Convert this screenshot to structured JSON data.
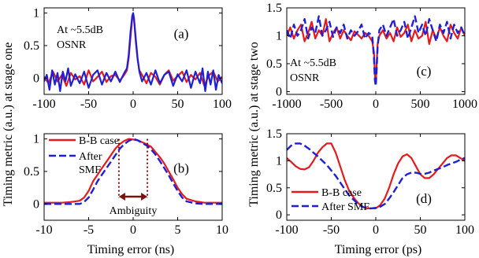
{
  "colors": {
    "red": "#e41a1c",
    "blue": "#1f1fd6",
    "dark_red": "#7b1010",
    "axis": "#000000"
  },
  "labels": {
    "ylabel_left": "Timing metric (a.u.) at stage one",
    "ylabel_right": "Timing metric (a.u.) at stage two",
    "xlabel_left": "Timing error (ns)",
    "xlabel_right": "Timing error (ps)"
  },
  "chart_data": [
    {
      "id": "a",
      "type": "line",
      "panel_label": "(a)",
      "annotation": [
        "At ~5.5dB",
        "OSNR"
      ],
      "xlim": [
        -100,
        100
      ],
      "ylim": [
        -0.25,
        1.08
      ],
      "xticks": [
        -100,
        -50,
        0,
        50,
        100
      ],
      "yticks": [
        0,
        0.5,
        1
      ],
      "series": [
        {
          "color": "red",
          "style": "solid",
          "x": [
            -100,
            -95,
            -90,
            -85,
            -80,
            -75,
            -70,
            -65,
            -60,
            -55,
            -50,
            -45,
            -40,
            -35,
            -30,
            -25,
            -20,
            -15,
            -10,
            -7,
            -5,
            -3,
            -1,
            0,
            1,
            3,
            5,
            7,
            10,
            15,
            20,
            25,
            30,
            35,
            40,
            45,
            50,
            55,
            60,
            65,
            70,
            75,
            80,
            85,
            90,
            95,
            100
          ],
          "y": [
            0.02,
            -0.08,
            0.1,
            -0.05,
            0.05,
            -0.12,
            0.08,
            -0.02,
            0.03,
            -0.1,
            0.12,
            -0.05,
            0.02,
            0.1,
            -0.06,
            0.03,
            0.05,
            -0.04,
            0.05,
            0.12,
            0.3,
            0.62,
            0.92,
            0.98,
            0.9,
            0.55,
            0.28,
            0.12,
            0.05,
            -0.08,
            0.08,
            0.02,
            -0.1,
            0.05,
            0.12,
            -0.04,
            0.03,
            0.1,
            -0.06,
            0.05,
            -0.02,
            0.08,
            -0.12,
            0.04,
            0.1,
            -0.05,
            0.02
          ]
        },
        {
          "color": "blue",
          "style": "solid",
          "x": [
            -100,
            -97,
            -94,
            -91,
            -88,
            -85,
            -82,
            -79,
            -76,
            -73,
            -70,
            -65,
            -60,
            -55,
            -50,
            -45,
            -40,
            -35,
            -30,
            -25,
            -20,
            -15,
            -10,
            -7,
            -5,
            -3,
            -1,
            0,
            1,
            3,
            5,
            7,
            10,
            15,
            20,
            25,
            30,
            35,
            40,
            45,
            50,
            55,
            60,
            65,
            70,
            75,
            78,
            81,
            84,
            87,
            90,
            93,
            96,
            100
          ],
          "y": [
            -0.05,
            0.05,
            -0.18,
            0.12,
            -0.1,
            0.08,
            -0.2,
            0.1,
            -0.05,
            0.15,
            -0.12,
            0.06,
            -0.08,
            0.1,
            -0.15,
            0.05,
            0.12,
            -0.1,
            0.08,
            -0.05,
            0.1,
            -0.06,
            0.08,
            0.15,
            0.35,
            0.7,
            0.96,
            1.0,
            0.92,
            0.6,
            0.3,
            0.1,
            -0.05,
            0.08,
            -0.1,
            0.12,
            -0.08,
            0.05,
            0.1,
            -0.12,
            0.06,
            -0.05,
            0.12,
            -0.15,
            0.1,
            -0.08,
            0.15,
            -0.2,
            0.1,
            -0.1,
            0.12,
            -0.18,
            0.05,
            -0.08
          ]
        }
      ]
    },
    {
      "id": "b",
      "type": "line",
      "panel_label": "(b)",
      "xlim": [
        -10,
        10
      ],
      "ylim": [
        -0.25,
        1.08
      ],
      "xticks": [
        -10,
        -5,
        0,
        5,
        10
      ],
      "yticks": [
        0,
        0.5,
        1
      ],
      "legend": [
        "B-B case",
        "After",
        "SMF"
      ],
      "annotation": "Ambiguity",
      "ambiguity_range": [
        -1.6,
        1.6
      ],
      "series": [
        {
          "color": "red",
          "style": "solid",
          "x": [
            -10,
            -9,
            -8,
            -7,
            -6,
            -5.5,
            -5,
            -4.5,
            -4,
            -3.5,
            -3,
            -2.5,
            -2,
            -1.5,
            -1,
            -0.5,
            0,
            0.5,
            1,
            1.5,
            2,
            2.5,
            3,
            3.5,
            4,
            4.5,
            5,
            5.5,
            6,
            7,
            8,
            9,
            10
          ],
          "y": [
            0.02,
            0.02,
            0.02,
            0.03,
            0.05,
            0.1,
            0.2,
            0.35,
            0.45,
            0.55,
            0.65,
            0.75,
            0.85,
            0.92,
            0.97,
            1.0,
            0.99,
            0.98,
            0.95,
            0.92,
            0.88,
            0.8,
            0.72,
            0.62,
            0.5,
            0.38,
            0.25,
            0.15,
            0.08,
            0.04,
            0.02,
            0.02,
            0.02
          ]
        },
        {
          "color": "blue",
          "style": "dashed",
          "x": [
            -10,
            -9,
            -8,
            -7,
            -6,
            -5.5,
            -5,
            -4.5,
            -4,
            -3.5,
            -3,
            -2.5,
            -2,
            -1.5,
            -1,
            -0.5,
            0,
            0.5,
            1,
            1.5,
            2,
            2.5,
            3,
            3.5,
            4,
            4.5,
            5,
            5.5,
            6,
            7,
            8,
            9,
            10
          ],
          "y": [
            0.0,
            0.0,
            0.0,
            0.0,
            0.0,
            0.03,
            0.1,
            0.22,
            0.35,
            0.45,
            0.55,
            0.65,
            0.75,
            0.85,
            0.92,
            0.97,
            1.0,
            0.98,
            0.94,
            0.9,
            0.84,
            0.76,
            0.66,
            0.55,
            0.44,
            0.32,
            0.2,
            0.1,
            0.04,
            0.01,
            0.0,
            0.0,
            0.0
          ]
        }
      ]
    },
    {
      "id": "c",
      "type": "line",
      "panel_label": "(c)",
      "annotation": [
        "At ~5.5dB",
        "OSNR"
      ],
      "xlim": [
        -1000,
        1000
      ],
      "ylim": [
        -0.05,
        1.5
      ],
      "xticks": [
        -1000,
        -500,
        0,
        500,
        1000
      ],
      "yticks": [
        0,
        0.5,
        1,
        1.5
      ],
      "series": [
        {
          "color": "red",
          "style": "solid",
          "x": [
            -1000,
            -960,
            -920,
            -880,
            -840,
            -800,
            -760,
            -720,
            -680,
            -640,
            -600,
            -560,
            -520,
            -480,
            -440,
            -400,
            -360,
            -320,
            -280,
            -240,
            -200,
            -160,
            -120,
            -80,
            -40,
            -20,
            -10,
            0,
            10,
            20,
            40,
            80,
            120,
            160,
            200,
            240,
            280,
            320,
            360,
            400,
            440,
            480,
            520,
            560,
            600,
            640,
            680,
            720,
            760,
            800,
            840,
            880,
            920,
            960,
            1000
          ],
          "y": [
            1.0,
            1.15,
            0.95,
            1.1,
            1.2,
            0.9,
            1.05,
            1.25,
            0.95,
            1.1,
            1.0,
            1.3,
            0.9,
            1.05,
            1.15,
            0.95,
            1.1,
            1.0,
            0.92,
            1.08,
            1.02,
            0.95,
            1.05,
            1.0,
            0.9,
            0.7,
            0.3,
            0.15,
            0.5,
            0.85,
            1.0,
            1.1,
            0.95,
            1.05,
            0.9,
            1.15,
            0.98,
            1.05,
            1.2,
            0.9,
            1.1,
            0.95,
            1.0,
            1.25,
            0.85,
            1.1,
            0.95,
            1.15,
            1.0,
            0.9,
            1.2,
            1.05,
            0.95,
            1.15,
            1.0
          ]
        },
        {
          "color": "blue",
          "style": "dashed",
          "x": [
            -1000,
            -960,
            -920,
            -880,
            -840,
            -800,
            -760,
            -720,
            -680,
            -640,
            -600,
            -560,
            -520,
            -480,
            -440,
            -400,
            -360,
            -320,
            -280,
            -240,
            -200,
            -160,
            -120,
            -80,
            -40,
            -20,
            -10,
            0,
            10,
            20,
            40,
            80,
            120,
            160,
            200,
            240,
            280,
            320,
            360,
            400,
            440,
            480,
            520,
            560,
            600,
            640,
            680,
            720,
            760,
            800,
            840,
            880,
            920,
            960,
            1000
          ],
          "y": [
            1.1,
            0.95,
            1.2,
            1.0,
            1.1,
            1.3,
            0.95,
            1.15,
            1.05,
            1.35,
            1.0,
            1.1,
            1.25,
            0.98,
            1.15,
            1.05,
            1.2,
            0.95,
            1.1,
            1.0,
            1.08,
            1.2,
            0.95,
            1.05,
            1.0,
            0.6,
            0.2,
            0.1,
            0.4,
            0.8,
            1.1,
            1.2,
            1.0,
            1.15,
            1.3,
            1.0,
            1.1,
            1.25,
            0.95,
            1.15,
            1.35,
            1.05,
            1.2,
            1.0,
            1.3,
            1.1,
            0.9,
            1.2,
            1.05,
            1.25,
            0.95,
            1.2,
            1.05,
            1.15,
            1.0
          ]
        }
      ]
    },
    {
      "id": "d",
      "type": "line",
      "panel_label": "(d)",
      "xlim": [
        -100,
        100
      ],
      "ylim": [
        -0.1,
        1.5
      ],
      "xticks": [
        -100,
        -50,
        0,
        50,
        100
      ],
      "yticks": [
        0,
        0.5,
        1,
        1.5
      ],
      "legend": [
        "B-B case",
        "After SMF"
      ],
      "series": [
        {
          "color": "red",
          "style": "solid",
          "x": [
            -100,
            -95,
            -90,
            -85,
            -80,
            -75,
            -70,
            -65,
            -60,
            -55,
            -50,
            -45,
            -40,
            -35,
            -30,
            -25,
            -20,
            -15,
            -10,
            -5,
            0,
            5,
            10,
            15,
            20,
            25,
            30,
            35,
            40,
            45,
            50,
            55,
            60,
            65,
            70,
            75,
            80,
            85,
            90,
            95,
            100
          ],
          "y": [
            1.05,
            0.98,
            0.9,
            0.85,
            0.84,
            0.88,
            1.0,
            1.15,
            1.25,
            1.32,
            1.32,
            1.15,
            0.9,
            0.65,
            0.45,
            0.32,
            0.22,
            0.15,
            0.12,
            0.12,
            0.12,
            0.18,
            0.3,
            0.5,
            0.75,
            0.95,
            1.08,
            1.12,
            1.05,
            0.9,
            0.75,
            0.68,
            0.68,
            0.75,
            0.85,
            0.95,
            1.05,
            1.1,
            1.1,
            1.05,
            1.0
          ]
        },
        {
          "color": "blue",
          "style": "dashed",
          "x": [
            -100,
            -95,
            -90,
            -85,
            -80,
            -75,
            -70,
            -65,
            -60,
            -55,
            -50,
            -45,
            -40,
            -35,
            -30,
            -25,
            -20,
            -15,
            -10,
            -5,
            0,
            5,
            10,
            15,
            20,
            25,
            30,
            35,
            40,
            45,
            50,
            55,
            60,
            65,
            70,
            75,
            80,
            85,
            90,
            95,
            100
          ],
          "y": [
            1.2,
            1.28,
            1.32,
            1.32,
            1.28,
            1.22,
            1.15,
            1.08,
            1.0,
            0.92,
            0.82,
            0.72,
            0.6,
            0.48,
            0.36,
            0.28,
            0.2,
            0.15,
            0.12,
            0.12,
            0.13,
            0.15,
            0.2,
            0.3,
            0.42,
            0.55,
            0.68,
            0.75,
            0.78,
            0.78,
            0.76,
            0.76,
            0.78,
            0.82,
            0.85,
            0.88,
            0.92,
            0.95,
            0.98,
            1.02,
            1.05
          ]
        }
      ]
    }
  ]
}
